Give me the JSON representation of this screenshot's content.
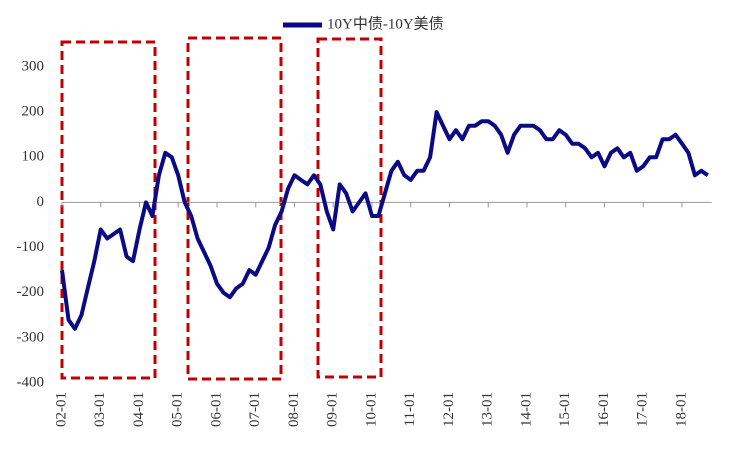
{
  "chart_data": {
    "type": "line",
    "categories": [
      "02-01",
      null,
      null,
      null,
      null,
      null,
      "03-01",
      null,
      null,
      null,
      null,
      null,
      "04-01",
      null,
      null,
      null,
      null,
      null,
      "05-01",
      null,
      null,
      null,
      null,
      null,
      "06-01",
      null,
      null,
      null,
      null,
      null,
      "07-01",
      null,
      null,
      null,
      null,
      null,
      "08-01",
      null,
      null,
      null,
      null,
      null,
      "09-01",
      null,
      null,
      null,
      null,
      null,
      "10-01",
      null,
      null,
      null,
      null,
      null,
      "11-01",
      null,
      null,
      null,
      null,
      null,
      "12-01",
      null,
      null,
      null,
      null,
      null,
      "13-01",
      null,
      null,
      null,
      null,
      null,
      "14-01",
      null,
      null,
      null,
      null,
      null,
      "15-01",
      null,
      null,
      null,
      null,
      null,
      "16-01",
      null,
      null,
      null,
      null,
      null,
      "17-01",
      null,
      null,
      null,
      null,
      null,
      "18-01",
      null,
      null,
      null,
      null
    ],
    "series": [
      {
        "name": "10Y中债-10Y美债",
        "color": "#0a0a85",
        "values": [
          -150,
          -260,
          -280,
          -250,
          -190,
          -130,
          -60,
          -80,
          -70,
          -60,
          -120,
          -130,
          -60,
          0,
          -30,
          60,
          110,
          100,
          60,
          0,
          -30,
          -80,
          -110,
          -140,
          -180,
          -200,
          -210,
          -190,
          -180,
          -150,
          -160,
          -130,
          -100,
          -50,
          -20,
          30,
          60,
          50,
          40,
          60,
          40,
          -20,
          -60,
          40,
          20,
          -20,
          0,
          20,
          -30,
          -30,
          20,
          70,
          90,
          60,
          50,
          70,
          70,
          100,
          200,
          170,
          140,
          160,
          140,
          170,
          170,
          180,
          180,
          170,
          150,
          110,
          150,
          170,
          170,
          170,
          160,
          140,
          140,
          160,
          150,
          130,
          130,
          120,
          100,
          110,
          80,
          110,
          120,
          100,
          110,
          70,
          80,
          100,
          100,
          140,
          140,
          150,
          130,
          110,
          60,
          70,
          60
        ]
      }
    ],
    "ylim": [
      -400,
      300
    ],
    "yticks": [
      -400,
      -300,
      -200,
      -100,
      0,
      100,
      200,
      300
    ],
    "legend": "top"
  }
}
